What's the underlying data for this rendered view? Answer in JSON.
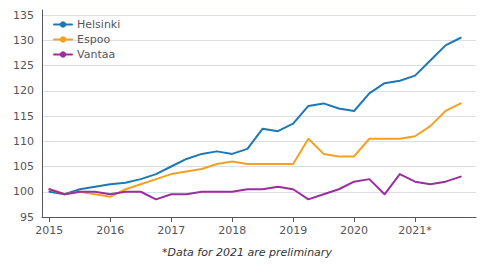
{
  "chart_data": {
    "type": "line",
    "footnote": "*Data for 2021 are preliminary",
    "x": [
      2015.0,
      2015.25,
      2015.5,
      2015.75,
      2016.0,
      2016.25,
      2016.5,
      2016.75,
      2017.0,
      2017.25,
      2017.5,
      2017.75,
      2018.0,
      2018.25,
      2018.5,
      2018.75,
      2019.0,
      2019.25,
      2019.5,
      2019.75,
      2020.0,
      2020.25,
      2020.5,
      2020.75,
      2021.0,
      2021.25,
      2021.5,
      2021.75
    ],
    "series": [
      {
        "name": "Helsinki",
        "color": "#1f78b4",
        "values": [
          100.0,
          99.5,
          100.5,
          101.0,
          101.5,
          101.8,
          102.5,
          103.5,
          105.0,
          106.5,
          107.5,
          108.0,
          107.5,
          108.5,
          112.5,
          112.0,
          113.5,
          117.0,
          117.5,
          116.5,
          116.0,
          119.5,
          121.5,
          122.0,
          123.0,
          126.0,
          129.0,
          130.5
        ]
      },
      {
        "name": "Espoo",
        "color": "#f4a020",
        "values": [
          100.5,
          99.5,
          100.0,
          99.5,
          99.0,
          100.5,
          101.5,
          102.5,
          103.5,
          104.0,
          104.5,
          105.5,
          106.0,
          105.5,
          105.5,
          105.5,
          105.5,
          110.5,
          107.5,
          107.0,
          107.0,
          110.5,
          110.5,
          110.5,
          111.0,
          113.0,
          116.0,
          117.5
        ]
      },
      {
        "name": "Vantaa",
        "color": "#9b2fa0",
        "values": [
          100.5,
          99.5,
          100.0,
          100.0,
          99.5,
          100.0,
          100.0,
          98.5,
          99.5,
          99.5,
          100.0,
          100.0,
          100.0,
          100.5,
          100.5,
          101.0,
          100.5,
          98.5,
          99.5,
          100.5,
          102.0,
          102.5,
          99.5,
          103.5,
          102.0,
          101.5,
          102.0,
          103.0
        ]
      }
    ],
    "xlim": [
      2014.88,
      2022.0
    ],
    "xticks": [
      2015,
      2016,
      2017,
      2018,
      2019,
      2020,
      {
        "value": 2021,
        "label": "2021*"
      }
    ],
    "ylim": [
      95,
      136
    ],
    "yticks": [
      95,
      100,
      105,
      110,
      115,
      120,
      125,
      130,
      135
    ],
    "grid": true,
    "legend": "upper left"
  }
}
